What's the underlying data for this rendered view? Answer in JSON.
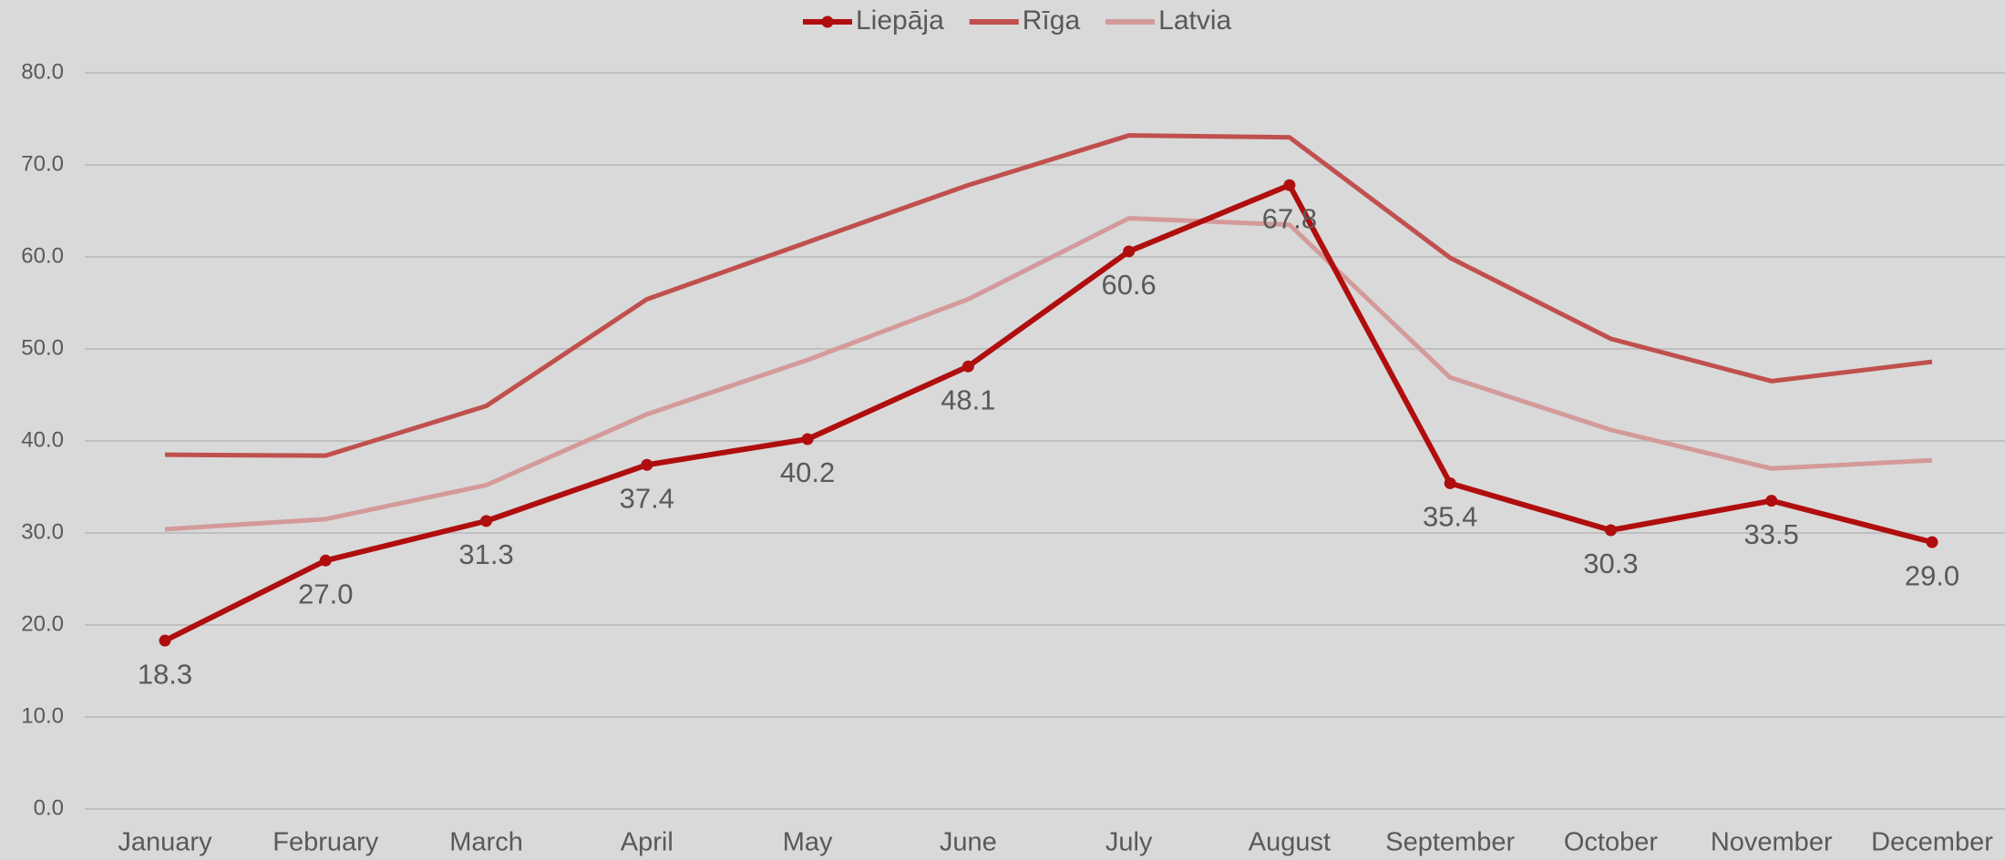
{
  "chart_data": {
    "type": "line",
    "categories": [
      "January",
      "February",
      "March",
      "April",
      "May",
      "June",
      "July",
      "August",
      "September",
      "October",
      "November",
      "December"
    ],
    "series": [
      {
        "name": "Liepāja",
        "color": "#b00e0e",
        "marker": true,
        "values": [
          18.3,
          27.0,
          31.3,
          37.4,
          40.2,
          48.1,
          60.6,
          67.8,
          35.4,
          30.3,
          33.5,
          29.0
        ],
        "value_labels": [
          "18.3",
          "27.0",
          "31.3",
          "37.4",
          "40.2",
          "48.1",
          "60.6",
          "67.8",
          "35.4",
          "30.3",
          "33.5",
          "29.0"
        ]
      },
      {
        "name": "Rīga",
        "color": "#c0504d",
        "marker": false,
        "values": [
          38.5,
          38.4,
          43.8,
          55.4,
          61.6,
          67.8,
          73.2,
          73.0,
          59.9,
          51.1,
          46.5,
          48.6
        ]
      },
      {
        "name": "Latvia",
        "color": "#d49a9a",
        "marker": false,
        "values": [
          30.4,
          31.5,
          35.2,
          42.9,
          48.8,
          55.4,
          64.2,
          63.5,
          46.9,
          41.2,
          37.0,
          37.9
        ]
      }
    ],
    "ylim": [
      0,
      80
    ],
    "yticks": [
      {
        "value": 0,
        "label": "0.0"
      },
      {
        "value": 10,
        "label": "10.0"
      },
      {
        "value": 20,
        "label": "20.0"
      },
      {
        "value": 30,
        "label": "30.0"
      },
      {
        "value": 40,
        "label": "40.0"
      },
      {
        "value": 50,
        "label": "50.0"
      },
      {
        "value": 60,
        "label": "60.0"
      },
      {
        "value": 70,
        "label": "70.0"
      },
      {
        "value": 80,
        "label": "80.0"
      }
    ],
    "grid": true,
    "legend": "top"
  }
}
